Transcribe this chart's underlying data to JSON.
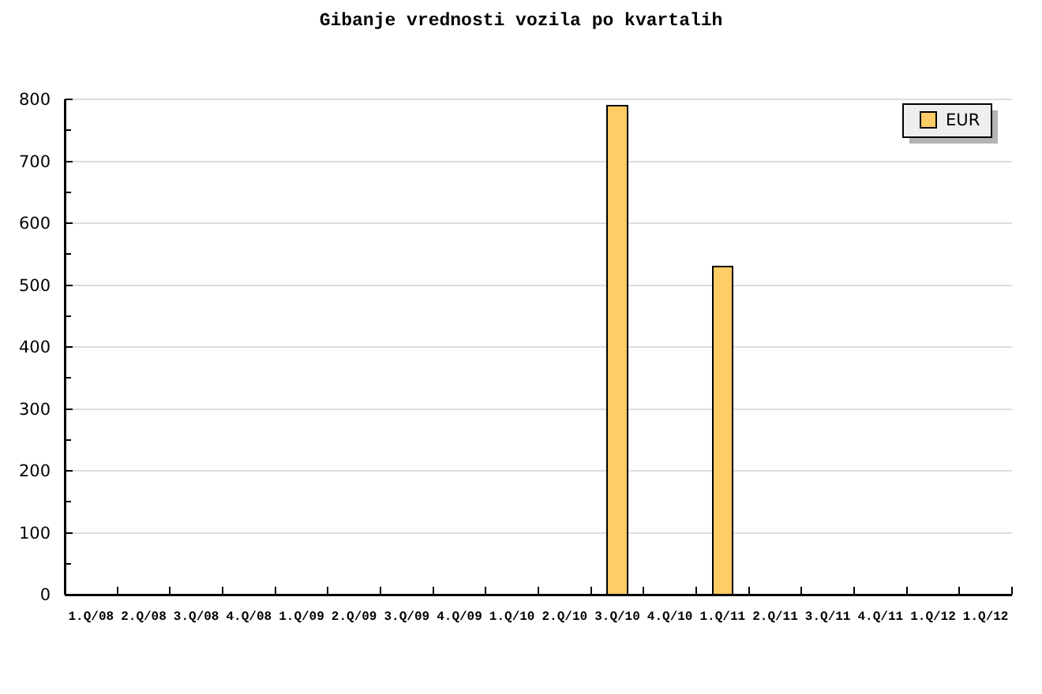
{
  "chart_data": {
    "type": "bar",
    "title": "Gibanje vrednosti vozila po kvartalih",
    "categories": [
      "1.Q/08",
      "2.Q/08",
      "3.Q/08",
      "4.Q/08",
      "1.Q/09",
      "2.Q/09",
      "3.Q/09",
      "4.Q/09",
      "1.Q/10",
      "2.Q/10",
      "3.Q/10",
      "4.Q/10",
      "1.Q/11",
      "2.Q/11",
      "3.Q/11",
      "4.Q/11",
      "1.Q/12",
      "1.Q/12"
    ],
    "series": [
      {
        "name": "EUR",
        "color": "#ffcc66",
        "values": [
          null,
          null,
          null,
          null,
          null,
          null,
          null,
          null,
          null,
          null,
          790,
          null,
          530,
          null,
          null,
          null,
          null,
          null
        ]
      }
    ],
    "ylim": [
      0,
      800
    ],
    "yticks": [
      0,
      {
        "value": 50,
        "label": null
      },
      100,
      {
        "value": 150,
        "label": null
      },
      200,
      {
        "value": 250,
        "label": null
      },
      300,
      {
        "value": 350,
        "label": null
      },
      400,
      {
        "value": 450,
        "label": null
      },
      500,
      {
        "value": 550,
        "label": null
      },
      600,
      {
        "value": 650,
        "label": null
      },
      700,
      {
        "value": 750,
        "label": null
      },
      800
    ],
    "grid": "y",
    "legend": "top right"
  }
}
